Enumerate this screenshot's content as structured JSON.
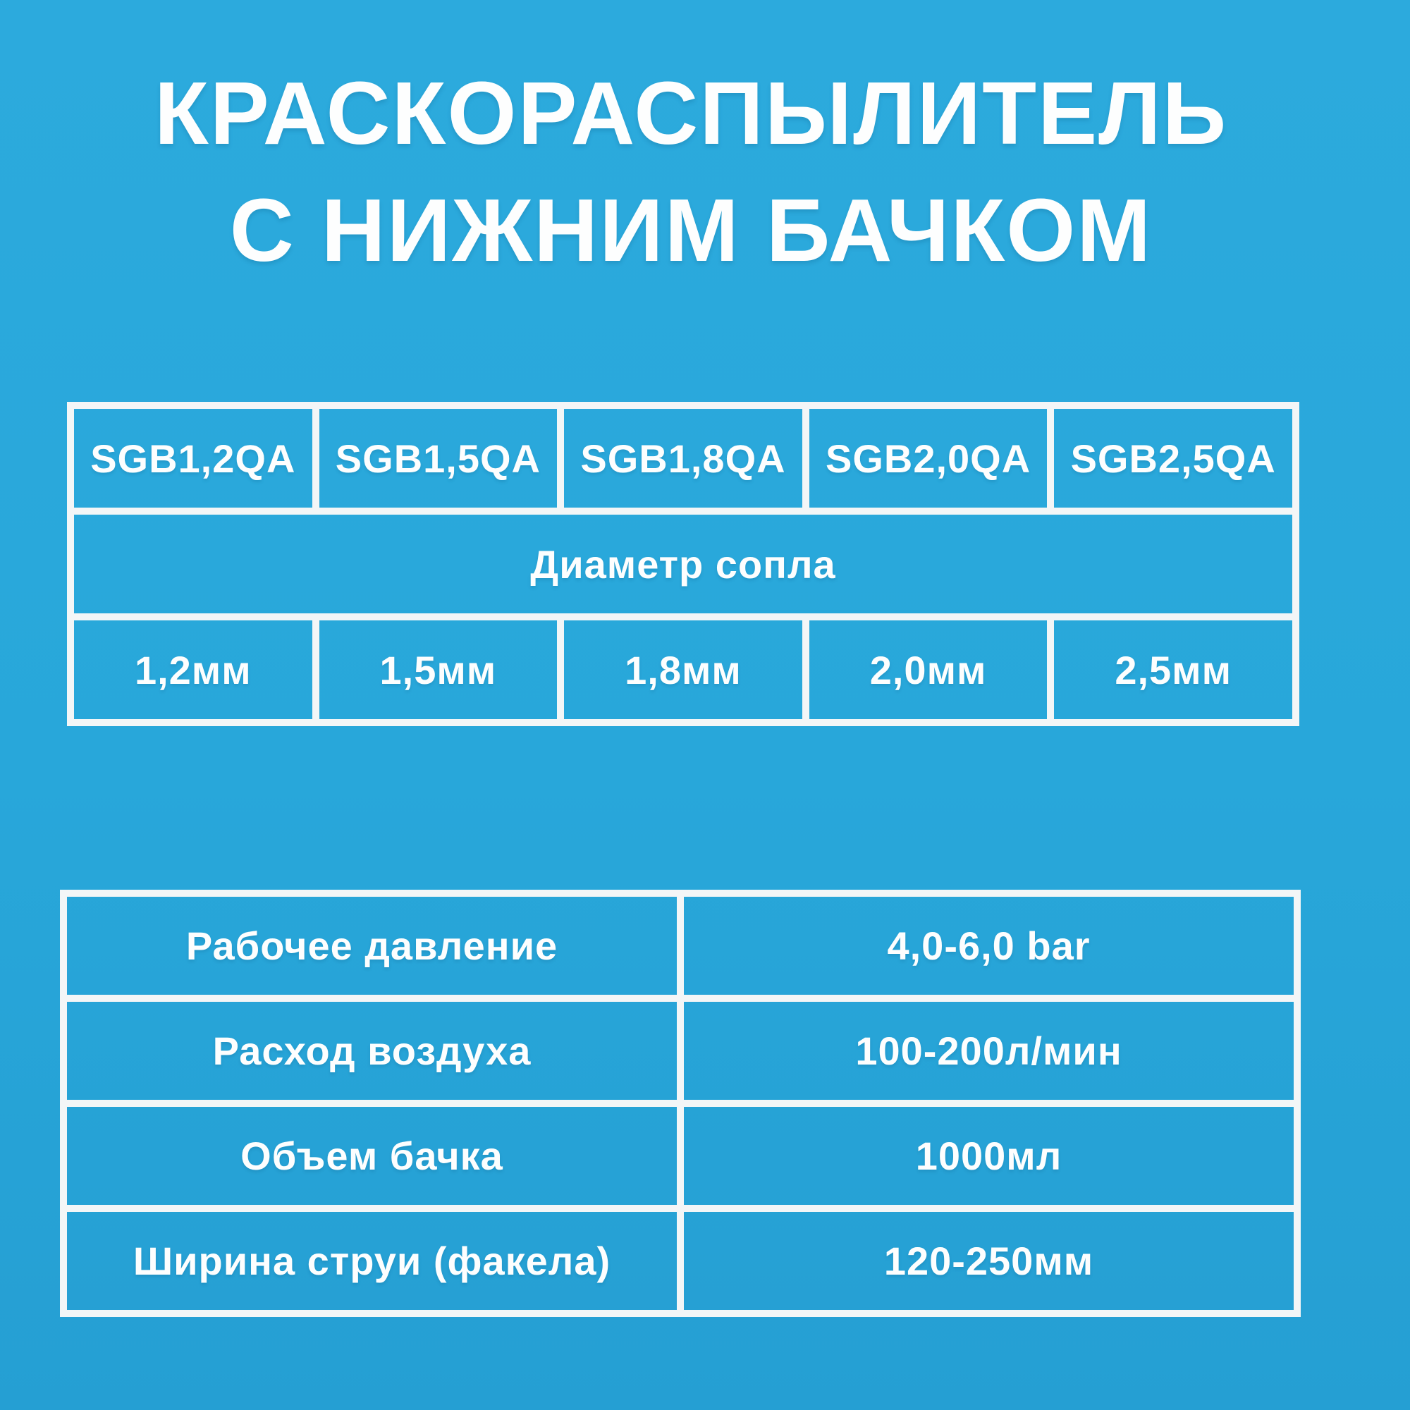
{
  "colors": {
    "background": "#28a7da",
    "table_lines": "#f3f6f7",
    "text": "#fdfefe"
  },
  "title": {
    "line1": "КРАСКОРАСПЫЛИТЕЛЬ",
    "line2": "С НИЖНИМ БАЧКОМ"
  },
  "models_table": {
    "models": [
      "SGB1,2QA",
      "SGB1,5QA",
      "SGB1,8QA",
      "SGB2,0QA",
      "SGB2,5QA"
    ],
    "span_label": "Диаметр сопла",
    "diameters": [
      "1,2мм",
      "1,5мм",
      "1,8мм",
      "2,0мм",
      "2,5мм"
    ]
  },
  "specs_table": {
    "rows": [
      {
        "label": "Рабочее давление",
        "value": "4,0-6,0 bar"
      },
      {
        "label": "Расход воздуха",
        "value": "100-200л/мин"
      },
      {
        "label": "Объем бачка",
        "value": "1000мл"
      },
      {
        "label": "Ширина струи (факела)",
        "value": "120-250мм"
      }
    ]
  }
}
